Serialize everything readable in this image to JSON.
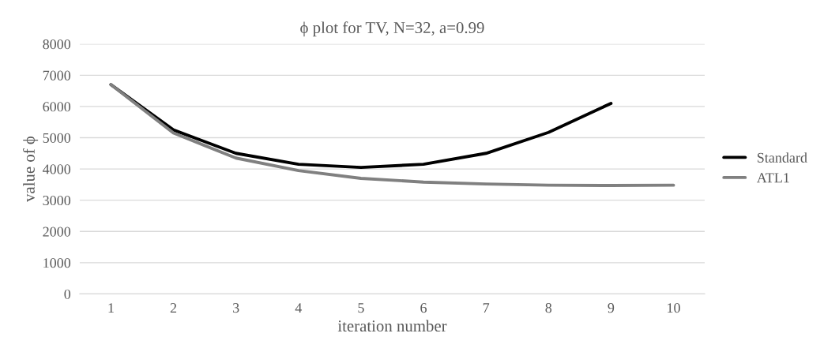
{
  "chart_data": {
    "type": "line",
    "title": "ϕ plot for TV, N=32, a=0.99",
    "xlabel": "iteration number",
    "ylabel": "value of ϕ",
    "categories": [
      "1",
      "2",
      "3",
      "4",
      "5",
      "6",
      "7",
      "8",
      "9",
      "10"
    ],
    "series": [
      {
        "name": "Standard",
        "color": "#000000",
        "values": [
          6700,
          5250,
          4500,
          4150,
          4050,
          4150,
          4500,
          5170,
          6100,
          null
        ]
      },
      {
        "name": "ATL1",
        "color": "#808080",
        "values": [
          6700,
          5150,
          4350,
          3950,
          3700,
          3580,
          3520,
          3480,
          3470,
          3480
        ]
      }
    ],
    "ylim": [
      0,
      8000
    ],
    "yticks": [
      0,
      1000,
      2000,
      3000,
      4000,
      5000,
      6000,
      7000,
      8000
    ],
    "grid": "y",
    "legend": "right",
    "marker": "none",
    "line_style": "solid"
  }
}
